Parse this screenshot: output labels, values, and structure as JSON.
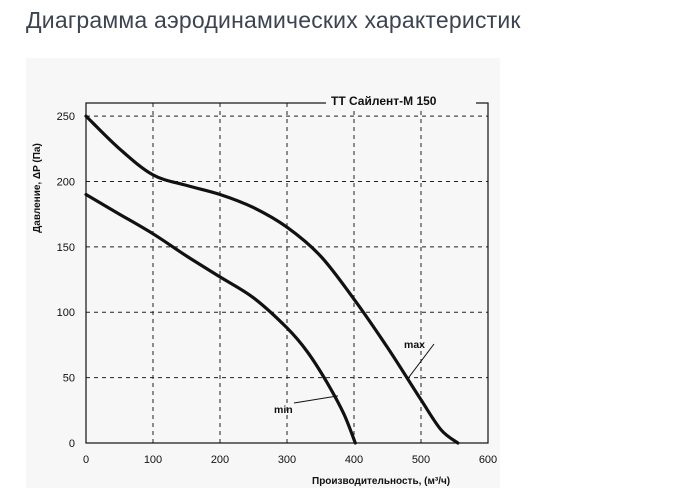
{
  "page": {
    "title": "Диаграмма аэродинамических характеристик"
  },
  "chart_data": {
    "type": "line",
    "title": "ТТ Сайлент-М 150",
    "xlabel": "Производительность, (м³/ч)",
    "ylabel": "Давление, ΔP (Па)",
    "xlim": [
      0,
      600
    ],
    "ylim": [
      0,
      260
    ],
    "x_ticks": [
      "0",
      "100",
      "200",
      "300",
      "400",
      "500",
      "600"
    ],
    "y_ticks": [
      "0",
      "50",
      "100",
      "150",
      "200",
      "250"
    ],
    "grid": true,
    "series": [
      {
        "name": "max",
        "x": [
          0,
          50,
          100,
          150,
          200,
          250,
          300,
          350,
          400,
          450,
          500,
          530,
          555
        ],
        "y": [
          250,
          225,
          205,
          197,
          190,
          180,
          165,
          143,
          110,
          73,
          33,
          10,
          0
        ]
      },
      {
        "name": "min",
        "x": [
          0,
          50,
          100,
          150,
          200,
          250,
          300,
          330,
          360,
          385,
          402
        ],
        "y": [
          190,
          175,
          160,
          143,
          127,
          111,
          88,
          70,
          46,
          22,
          0
        ]
      }
    ]
  },
  "colors": {
    "title": "#3d4451",
    "panel_background": "#f7f7f7",
    "curve": "#111111"
  }
}
